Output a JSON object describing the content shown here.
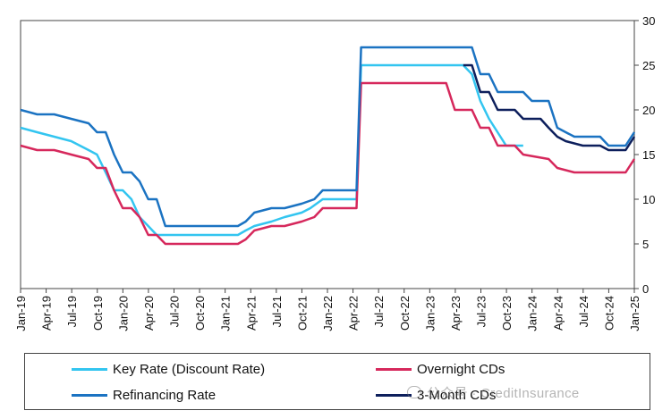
{
  "chart_data": {
    "type": "line",
    "title": "",
    "xlabel": "",
    "ylabel": "",
    "ylim": [
      0,
      30
    ],
    "y_axis_side": "right",
    "yticks": [
      0,
      5,
      10,
      15,
      20,
      25,
      30
    ],
    "grid": false,
    "legend_position": "bottom",
    "x_tick_labels": [
      "Jan-19",
      "Apr-19",
      "Jul-19",
      "Oct-19",
      "Jan-20",
      "Apr-20",
      "Jul-20",
      "Oct-20",
      "Jan-21",
      "Apr-21",
      "Jul-21",
      "Oct-21",
      "Jan-22",
      "Apr-22",
      "Jul-22",
      "Oct-22",
      "Jan-23",
      "Apr-23",
      "Jul-23",
      "Oct-23",
      "Jan-24",
      "Apr-24",
      "Jul-24",
      "Oct-24",
      "Jan-25"
    ],
    "x_start": "Jan-19",
    "x_end": "Jan-25",
    "series": [
      {
        "name": "Key Rate (Discount Rate)",
        "color": "#33c5f0",
        "points": [
          [
            "2019-01-01",
            18.0
          ],
          [
            "2019-03-01",
            17.5
          ],
          [
            "2019-05-01",
            17.0
          ],
          [
            "2019-07-01",
            16.5
          ],
          [
            "2019-09-01",
            15.5
          ],
          [
            "2019-10-01",
            15.0
          ],
          [
            "2019-11-01",
            13.0
          ],
          [
            "2019-12-01",
            11.0
          ],
          [
            "2020-01-01",
            11.0
          ],
          [
            "2020-02-01",
            10.0
          ],
          [
            "2020-03-01",
            8.0
          ],
          [
            "2020-04-01",
            7.0
          ],
          [
            "2020-05-01",
            6.0
          ],
          [
            "2021-02-15",
            6.0
          ],
          [
            "2021-03-15",
            6.5
          ],
          [
            "2021-04-15",
            7.0
          ],
          [
            "2021-06-15",
            7.5
          ],
          [
            "2021-08-01",
            8.0
          ],
          [
            "2021-10-01",
            8.5
          ],
          [
            "2021-11-01",
            9.0
          ],
          [
            "2021-12-15",
            10.0
          ],
          [
            "2022-04-15",
            10.0
          ],
          [
            "2022-05-01",
            25.0
          ],
          [
            "2023-05-01",
            25.0
          ],
          [
            "2023-06-01",
            24.0
          ],
          [
            "2023-07-01",
            21.0
          ],
          [
            "2023-08-01",
            19.0
          ],
          [
            "2023-10-01",
            16.0
          ],
          [
            "2023-12-01",
            16.0
          ]
        ]
      },
      {
        "name": "Overnight CDs",
        "color": "#d6285c",
        "points": [
          [
            "2019-01-01",
            16.0
          ],
          [
            "2019-03-01",
            15.5
          ],
          [
            "2019-05-01",
            15.5
          ],
          [
            "2019-07-01",
            15.0
          ],
          [
            "2019-09-01",
            14.5
          ],
          [
            "2019-10-01",
            13.5
          ],
          [
            "2019-11-01",
            13.5
          ],
          [
            "2019-12-01",
            11.0
          ],
          [
            "2020-01-01",
            9.0
          ],
          [
            "2020-02-01",
            9.0
          ],
          [
            "2020-03-01",
            8.0
          ],
          [
            "2020-04-01",
            6.0
          ],
          [
            "2020-05-01",
            6.0
          ],
          [
            "2020-06-01",
            5.0
          ],
          [
            "2021-02-15",
            5.0
          ],
          [
            "2021-03-15",
            5.5
          ],
          [
            "2021-04-15",
            6.5
          ],
          [
            "2021-06-15",
            7.0
          ],
          [
            "2021-08-01",
            7.0
          ],
          [
            "2021-10-01",
            7.5
          ],
          [
            "2021-11-15",
            8.0
          ],
          [
            "2021-12-15",
            9.0
          ],
          [
            "2022-04-15",
            9.0
          ],
          [
            "2022-05-01",
            23.0
          ],
          [
            "2023-03-01",
            23.0
          ],
          [
            "2023-04-01",
            20.0
          ],
          [
            "2023-06-01",
            20.0
          ],
          [
            "2023-07-01",
            18.0
          ],
          [
            "2023-08-01",
            18.0
          ],
          [
            "2023-09-01",
            16.0
          ],
          [
            "2023-11-01",
            16.0
          ],
          [
            "2023-12-01",
            15.0
          ],
          [
            "2024-03-01",
            14.5
          ],
          [
            "2024-04-01",
            13.5
          ],
          [
            "2024-06-01",
            13.0
          ],
          [
            "2024-12-01",
            13.0
          ],
          [
            "2025-01-01",
            14.5
          ]
        ]
      },
      {
        "name": "Refinancing Rate",
        "color": "#1b73c2",
        "points": [
          [
            "2019-01-01",
            20.0
          ],
          [
            "2019-03-01",
            19.5
          ],
          [
            "2019-05-01",
            19.5
          ],
          [
            "2019-07-01",
            19.0
          ],
          [
            "2019-09-01",
            18.5
          ],
          [
            "2019-10-01",
            17.5
          ],
          [
            "2019-11-01",
            17.5
          ],
          [
            "2019-12-01",
            15.0
          ],
          [
            "2020-01-01",
            13.0
          ],
          [
            "2020-02-01",
            13.0
          ],
          [
            "2020-03-01",
            12.0
          ],
          [
            "2020-04-01",
            10.0
          ],
          [
            "2020-05-01",
            10.0
          ],
          [
            "2020-06-01",
            7.0
          ],
          [
            "2021-02-15",
            7.0
          ],
          [
            "2021-03-15",
            7.5
          ],
          [
            "2021-04-15",
            8.5
          ],
          [
            "2021-06-15",
            9.0
          ],
          [
            "2021-08-01",
            9.0
          ],
          [
            "2021-10-01",
            9.5
          ],
          [
            "2021-11-15",
            10.0
          ],
          [
            "2021-12-15",
            11.0
          ],
          [
            "2022-04-15",
            11.0
          ],
          [
            "2022-05-01",
            27.0
          ],
          [
            "2023-06-01",
            27.0
          ],
          [
            "2023-07-01",
            24.0
          ],
          [
            "2023-08-01",
            24.0
          ],
          [
            "2023-09-01",
            22.0
          ],
          [
            "2023-12-01",
            22.0
          ],
          [
            "2024-01-01",
            21.0
          ],
          [
            "2024-03-01",
            21.0
          ],
          [
            "2024-04-01",
            18.0
          ],
          [
            "2024-05-01",
            17.5
          ],
          [
            "2024-06-01",
            17.0
          ],
          [
            "2024-09-01",
            17.0
          ],
          [
            "2024-10-01",
            16.0
          ],
          [
            "2024-12-01",
            16.0
          ],
          [
            "2025-01-01",
            17.5
          ]
        ]
      },
      {
        "name": "3-Month CDs",
        "color": "#0d1f5c",
        "points": [
          [
            "2023-05-01",
            25.0
          ],
          [
            "2023-06-01",
            25.0
          ],
          [
            "2023-07-01",
            22.0
          ],
          [
            "2023-08-01",
            22.0
          ],
          [
            "2023-09-01",
            20.0
          ],
          [
            "2023-11-01",
            20.0
          ],
          [
            "2023-12-01",
            19.0
          ],
          [
            "2024-02-01",
            19.0
          ],
          [
            "2024-03-01",
            18.0
          ],
          [
            "2024-04-01",
            17.0
          ],
          [
            "2024-05-01",
            16.5
          ],
          [
            "2024-07-01",
            16.0
          ],
          [
            "2024-09-01",
            16.0
          ],
          [
            "2024-10-01",
            15.5
          ],
          [
            "2024-12-01",
            15.5
          ],
          [
            "2025-01-01",
            17.0
          ]
        ]
      }
    ]
  },
  "legend": {
    "items": [
      {
        "label": "Key Rate (Discount Rate)",
        "color": "#33c5f0"
      },
      {
        "label": "Overnight CDs",
        "color": "#d6285c"
      },
      {
        "label": "Refinancing Rate",
        "color": "#1b73c2"
      },
      {
        "label": "3-Month CDs",
        "color": "#0d1f5c"
      }
    ]
  },
  "watermark": {
    "text": "公众号 · CreditInsurance"
  }
}
